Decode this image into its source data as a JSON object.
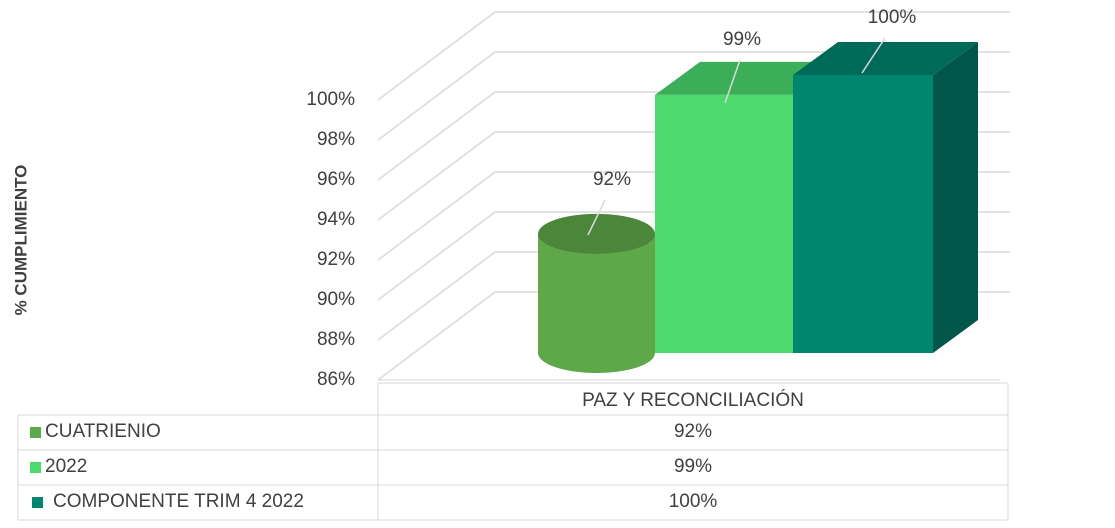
{
  "chart_data": {
    "type": "bar3d",
    "y_axis_label": "% CUMPLIMIENTO",
    "categories": [
      "PAZ Y RECONCILIACIÓN"
    ],
    "series": [
      {
        "name": "CUATRIENIO",
        "color": "#5fa84a",
        "values": [
          92
        ],
        "value_labels": [
          "92%"
        ]
      },
      {
        "name": "2022",
        "color": "#4cd96e",
        "values": [
          99
        ],
        "value_labels": [
          "99%"
        ]
      },
      {
        "name": "COMPONENTE TRIM 4 2022",
        "color": "#00856f",
        "values": [
          100
        ],
        "value_labels": [
          "100%"
        ]
      }
    ],
    "ylim": [
      86,
      100
    ],
    "yticks": [
      {
        "value": 86,
        "label": "86%"
      },
      {
        "value": 88,
        "label": "88%"
      },
      {
        "value": 90,
        "label": "90%"
      },
      {
        "value": 92,
        "label": "92%"
      },
      {
        "value": 94,
        "label": "94%"
      },
      {
        "value": 96,
        "label": "96%"
      },
      {
        "value": 98,
        "label": "98%"
      },
      {
        "value": 100,
        "label": "100%"
      }
    ],
    "grid": true
  }
}
